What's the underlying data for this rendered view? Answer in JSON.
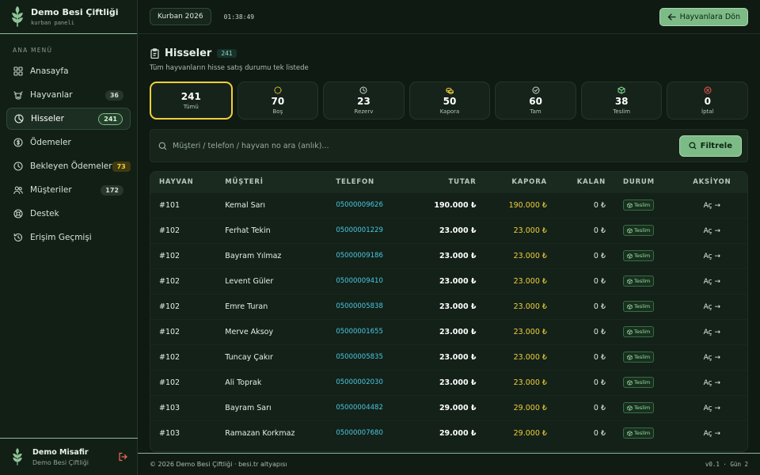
{
  "brand": {
    "title": "Demo Besi Çiftliği",
    "subtitle": "kurban paneli"
  },
  "sidebar": {
    "section_label": "ANA MENÜ",
    "items": [
      {
        "label": "Anasayfa",
        "icon": "grid-icon",
        "badge": ""
      },
      {
        "label": "Hayvanlar",
        "icon": "cow-icon",
        "badge": "36"
      },
      {
        "label": "Hisseler",
        "icon": "pie-icon",
        "badge": "241",
        "active": true
      },
      {
        "label": "Ödemeler",
        "icon": "coin-icon",
        "badge": ""
      },
      {
        "label": "Bekleyen Ödemeler",
        "icon": "clock-icon",
        "badge": "73"
      },
      {
        "label": "Müşteriler",
        "icon": "users-icon",
        "badge": "172"
      },
      {
        "label": "Destek",
        "icon": "lifebuoy-icon",
        "badge": ""
      },
      {
        "label": "Erişim Geçmişi",
        "icon": "history-icon",
        "badge": ""
      }
    ]
  },
  "user": {
    "name": "Demo Misafir",
    "org": "Demo Besi Çiftliği"
  },
  "topbar": {
    "season": "Kurban 2026",
    "clock": "01:38:49",
    "back_label": "Hayvanlara Dön"
  },
  "page": {
    "title": "Hisseler",
    "count": "241",
    "subtitle": "Tüm hayvanların hisse satış durumu tek listede"
  },
  "cards": [
    {
      "value": "241",
      "label": "Tümü",
      "active": true,
      "icon": ""
    },
    {
      "value": "70",
      "label": "Boş",
      "icon": "dashed-circle-icon",
      "color": "#f2cf3a"
    },
    {
      "value": "23",
      "label": "Rezerv",
      "icon": "clock-icon",
      "color": "#c9d6ca"
    },
    {
      "value": "50",
      "label": "Kapora",
      "icon": "coins-icon",
      "color": "#f2cf3a"
    },
    {
      "value": "60",
      "label": "Tam",
      "icon": "check-circle-icon",
      "color": "#c9d6ca"
    },
    {
      "value": "38",
      "label": "Teslim",
      "icon": "package-icon",
      "color": "#7dd88b"
    },
    {
      "value": "0",
      "label": "İptal",
      "icon": "x-circle-icon",
      "color": "#ef5350"
    }
  ],
  "filter": {
    "placeholder": "Müşteri / telefon / hayvan no ara (anlık)...",
    "button": "Filtrele"
  },
  "table": {
    "headers": [
      "HAYVAN",
      "MÜŞTERİ",
      "TELEFON",
      "TUTAR",
      "KAPORA",
      "KALAN",
      "DURUM",
      "AKSİYON"
    ],
    "rows": [
      {
        "hayvan": "#101",
        "musteri": "Kemal Sarı",
        "telefon": "05000009626",
        "tutar": "190.000 ₺",
        "kapora": "190.000 ₺",
        "kalan": "0 ₺",
        "durum": "Teslim",
        "aksiyon": "Aç →"
      },
      {
        "hayvan": "#102",
        "musteri": "Ferhat Tekin",
        "telefon": "05000001229",
        "tutar": "23.000 ₺",
        "kapora": "23.000 ₺",
        "kalan": "0 ₺",
        "durum": "Teslim",
        "aksiyon": "Aç →"
      },
      {
        "hayvan": "#102",
        "musteri": "Bayram Yılmaz",
        "telefon": "05000009186",
        "tutar": "23.000 ₺",
        "kapora": "23.000 ₺",
        "kalan": "0 ₺",
        "durum": "Teslim",
        "aksiyon": "Aç →"
      },
      {
        "hayvan": "#102",
        "musteri": "Levent Güler",
        "telefon": "05000009410",
        "tutar": "23.000 ₺",
        "kapora": "23.000 ₺",
        "kalan": "0 ₺",
        "durum": "Teslim",
        "aksiyon": "Aç →"
      },
      {
        "hayvan": "#102",
        "musteri": "Emre Turan",
        "telefon": "05000005838",
        "tutar": "23.000 ₺",
        "kapora": "23.000 ₺",
        "kalan": "0 ₺",
        "durum": "Teslim",
        "aksiyon": "Aç →"
      },
      {
        "hayvan": "#102",
        "musteri": "Merve Aksoy",
        "telefon": "05000001655",
        "tutar": "23.000 ₺",
        "kapora": "23.000 ₺",
        "kalan": "0 ₺",
        "durum": "Teslim",
        "aksiyon": "Aç →"
      },
      {
        "hayvan": "#102",
        "musteri": "Tuncay Çakır",
        "telefon": "05000005835",
        "tutar": "23.000 ₺",
        "kapora": "23.000 ₺",
        "kalan": "0 ₺",
        "durum": "Teslim",
        "aksiyon": "Aç →"
      },
      {
        "hayvan": "#102",
        "musteri": "Ali Toprak",
        "telefon": "05000002030",
        "tutar": "23.000 ₺",
        "kapora": "23.000 ₺",
        "kalan": "0 ₺",
        "durum": "Teslim",
        "aksiyon": "Aç →"
      },
      {
        "hayvan": "#103",
        "musteri": "Bayram Sarı",
        "telefon": "05000004482",
        "tutar": "29.000 ₺",
        "kapora": "29.000 ₺",
        "kalan": "0 ₺",
        "durum": "Teslim",
        "aksiyon": "Aç →"
      },
      {
        "hayvan": "#103",
        "musteri": "Ramazan Korkmaz",
        "telefon": "05000007680",
        "tutar": "29.000 ₺",
        "kapora": "29.000 ₺",
        "kalan": "0 ₺",
        "durum": "Teslim",
        "aksiyon": "Aç →"
      }
    ]
  },
  "footer": {
    "copyright": "© 2026 Demo Besi Çiftliği · besi.tr altyapısı",
    "version": "v0.1 · Gün 2"
  }
}
